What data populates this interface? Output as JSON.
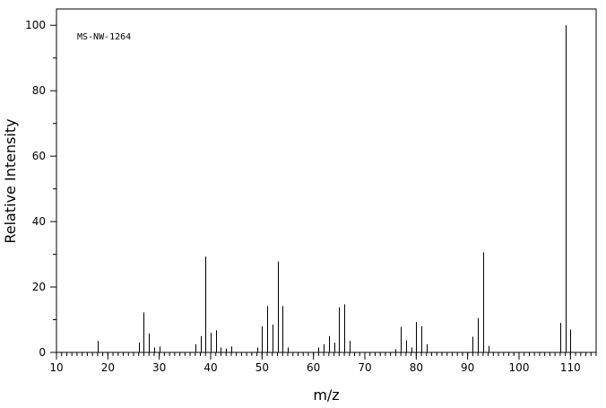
{
  "chart_data": {
    "type": "bar",
    "annotation": "MS-NW-1264",
    "xlabel": "m/z",
    "ylabel": "Relative Intensity",
    "xlim": [
      10,
      115
    ],
    "ylim": [
      0,
      105
    ],
    "x_ticks": [
      10,
      20,
      30,
      40,
      50,
      60,
      70,
      80,
      90,
      100,
      110
    ],
    "y_ticks": [
      0,
      20,
      40,
      60,
      80,
      100
    ],
    "grid": false,
    "legend": "none",
    "bar_color": "#000000",
    "series": [
      {
        "x": [
          18,
          26,
          27,
          28,
          29,
          30,
          37,
          38,
          39,
          40,
          41,
          42,
          43,
          44,
          49,
          50,
          51,
          52,
          53,
          54,
          55,
          61,
          62,
          63,
          64,
          65,
          66,
          67,
          76,
          77,
          78,
          79,
          80,
          81,
          82,
          91,
          92,
          93,
          94,
          108,
          109,
          110
        ],
        "values": [
          3.5,
          3,
          12.2,
          5.8,
          1.5,
          1.8,
          2.5,
          5,
          29.3,
          6,
          6.8,
          1.5,
          1.2,
          1.8,
          1.5,
          8,
          14.2,
          8.5,
          27.8,
          14.2,
          1.5,
          1.5,
          2.5,
          5,
          3,
          13.8,
          14.7,
          3.5,
          1,
          7.8,
          3.7,
          1.5,
          9.3,
          8,
          2.5,
          4.8,
          10.5,
          30.6,
          2,
          9,
          100,
          7
        ]
      }
    ]
  }
}
